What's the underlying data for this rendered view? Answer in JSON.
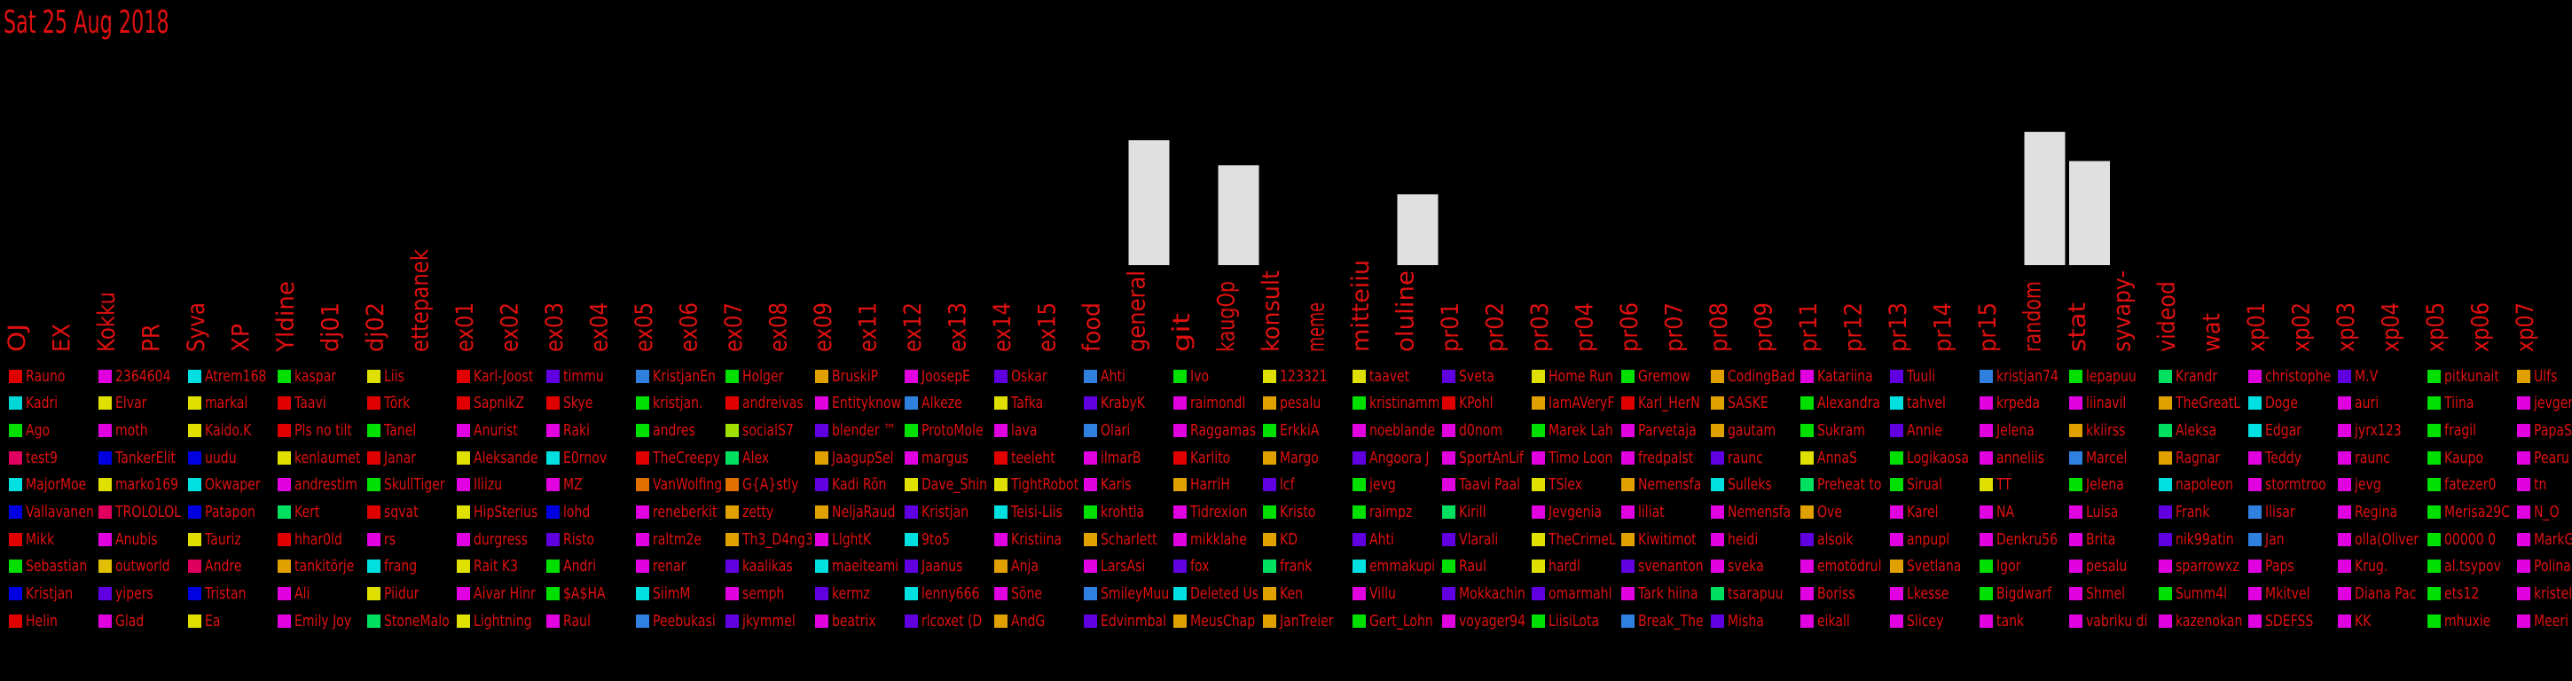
{
  "date": "Sat 25 Aug 2018",
  "chart_data": {
    "type": "bar",
    "categories": [
      "OJ",
      "EX",
      "Kokku",
      "PR",
      "Syva",
      "XP",
      "Yldine",
      "dj01",
      "dj02",
      "ettepanek",
      "ex01",
      "ex02",
      "ex03",
      "ex04",
      "ex05",
      "ex06",
      "ex07",
      "ex08",
      "ex09",
      "ex11",
      "ex12",
      "ex13",
      "ex14",
      "ex15",
      "food",
      "general",
      "git",
      "kaugOp",
      "konsult",
      "meme",
      "mitteiiu",
      "oluline",
      "pr01",
      "pr02",
      "pr03",
      "pr04",
      "pr06",
      "pr07",
      "pr08",
      "pr09",
      "pr11",
      "pr12",
      "pr13",
      "pr14",
      "pr15",
      "random",
      "stat",
      "syvapy-",
      "videod",
      "wat",
      "xp01",
      "xp02",
      "xp03",
      "xp04",
      "xp05",
      "xp06",
      "xp07"
    ],
    "values": [
      0,
      0,
      0,
      0,
      0,
      0,
      0,
      0,
      0,
      0,
      0,
      0,
      0,
      0,
      0,
      0,
      0,
      0,
      0,
      0,
      0,
      0,
      0,
      0,
      0,
      15,
      0,
      12,
      0,
      0,
      0,
      8.5,
      0,
      0,
      0,
      0,
      0,
      0,
      0,
      0,
      0,
      0,
      0,
      0,
      0,
      16,
      12.5,
      0,
      0,
      0,
      0,
      0,
      0,
      0,
      0,
      0,
      0
    ],
    "ylim": [
      0,
      18
    ]
  },
  "columns": [
    {
      "colors": [
        "#e00000",
        "#00d8d8",
        "#00e000",
        "#e00060",
        "#00e0e0",
        "#0000e0",
        "#e00000",
        "#00e000",
        "#0000e0",
        "#e00000"
      ],
      "names": [
        "Rauno",
        "Kadri",
        "Ago",
        "test9",
        "MajorMoe",
        "Vallavanen",
        "Mikk",
        "Sebastian",
        "Kristjan",
        "Helin"
      ]
    },
    {
      "colors": [
        "#e000e0",
        "#e0e000",
        "#e000e0",
        "#0000e0",
        "#e0e000",
        "#e00060",
        "#e000e0",
        "#e0c000",
        "#6000e0",
        "#e000e0"
      ],
      "names": [
        "2364604",
        "Elvar",
        "moth",
        "TankerElit",
        "marko169",
        "TROLOLOL",
        "Anubis",
        "outworld",
        "yipers",
        "Glad"
      ]
    },
    {
      "colors": [
        "#00e0e0",
        "#e0e000",
        "#e0e000",
        "#0000e0",
        "#00e0e0",
        "#0000e0",
        "#e0e000",
        "#e00060",
        "#0000e0",
        "#e0e000"
      ],
      "names": [
        "Atrem168",
        "markal",
        "Kaido.K",
        "uudu",
        "Okwaper",
        "Pataрon",
        "Tauriz",
        "Andre",
        "Tristan",
        "Ea"
      ]
    },
    {
      "colors": [
        "#00e000",
        "#e00000",
        "#e00000",
        "#e0e000",
        "#e000e0",
        "#00e060",
        "#e00000",
        "#e0a000",
        "#e000e0",
        "#e000e0"
      ],
      "names": [
        "kaspar",
        "Taavi",
        "Pls no tilt",
        "kenlaumet",
        "andrestim",
        "Kert",
        "hhar0ld",
        "tankitörje",
        "Ali",
        "Emily Joy"
      ]
    },
    {
      "colors": [
        "#e0e000",
        "#e00000",
        "#00e000",
        "#e00000",
        "#00e000",
        "#e00000",
        "#e000e0",
        "#00e0e0",
        "#e0e000",
        "#00e060"
      ],
      "names": [
        "Liis",
        "Tõrk",
        "Tanel",
        "Janar",
        "SkullTiger",
        "sqvat",
        "rs",
        "frang",
        "Piidur",
        "StoneMalo"
      ]
    },
    {
      "colors": [
        "#e00000",
        "#e00000",
        "#e000e0",
        "#e0e000",
        "#e000e0",
        "#e0e000",
        "#e000e0",
        "#e0e000",
        "#e000e0",
        "#e0e000"
      ],
      "names": [
        "Karl-Joost",
        "SapnikZ",
        "Anurist",
        "Aleksande",
        "Iliizu",
        "HipSterius",
        "durgress",
        "Rait K3",
        "Aivar Hinr",
        "Lightning"
      ]
    },
    {
      "colors": [
        "#6000e0",
        "#e00000",
        "#e000e0",
        "#00e0e0",
        "#e000e0",
        "#0000e0",
        "#6000e0",
        "#00e000",
        "#00e000",
        "#e000e0"
      ],
      "names": [
        "timmu",
        "Skye",
        "Raki",
        "E0rnov",
        "MZ",
        "lohd",
        "Risto",
        "Andri",
        "$A$HA",
        "Raul"
      ]
    },
    {
      "colors": [
        "#3080e0",
        "#00e000",
        "#00e000",
        "#e00000",
        "#e07000",
        "#e000e0",
        "#e000e0",
        "#e000e0",
        "#00e0e0",
        "#3080e0"
      ],
      "names": [
        "KristjanEn",
        "kristjan.",
        "andres",
        "TheCreepy",
        "VanWolfing",
        "reneberkit",
        "raltm2e",
        "renar",
        "SiimM",
        "Peebukasi"
      ]
    },
    {
      "colors": [
        "#00e000",
        "#e00000",
        "#a0e000",
        "#00e060",
        "#e07000",
        "#e0a000",
        "#e0a000",
        "#6000e0",
        "#e000e0",
        "#6000e0"
      ],
      "names": [
        "Holger",
        "andreivas",
        "socialS7",
        "Alex",
        "G{A}stly",
        "zetty",
        "Th3_D4ng3",
        "kaalikas",
        "semph",
        "jkymmel"
      ]
    },
    {
      "colors": [
        "#e0a000",
        "#e000e0",
        "#6000e0",
        "#e0a000",
        "#6000e0",
        "#e0a000",
        "#e000e0",
        "#00e0e0",
        "#6000e0",
        "#e000e0"
      ],
      "names": [
        "BruskiP",
        "Entityknow",
        "blender ™",
        "JaagupSel",
        "Kadi Rõn",
        "NeljaRaud",
        "LlghtK",
        "maeiteami",
        "kermz",
        "beatrix"
      ]
    },
    {
      "colors": [
        "#e000e0",
        "#3080e0",
        "#00e000",
        "#e000e0",
        "#e0e000",
        "#6000e0",
        "#00e0e0",
        "#6000e0",
        "#00e0e0",
        "#6000e0"
      ],
      "names": [
        "JoosepE",
        "Alkeze",
        "ProtoMole",
        "margus",
        "Dave_Shin",
        "Kristjan",
        "9to5",
        "Jaanus",
        "lenny666",
        "rlcoxet (D"
      ]
    },
    {
      "colors": [
        "#6000e0",
        "#e0e000",
        "#e000e0",
        "#e00000",
        "#e0e000",
        "#00e0e0",
        "#e000e0",
        "#e0a000",
        "#e000e0",
        "#e0a000"
      ],
      "names": [
        "Oskar",
        "Tafka",
        "lava",
        "teeleht",
        "TightRobot",
        "Teisi-Liis",
        "Kristiina",
        "Anja",
        "Söne",
        "AndG"
      ]
    },
    {
      "colors": [
        "#3080e0",
        "#6000e0",
        "#3080e0",
        "#e000e0",
        "#e000e0",
        "#00e000",
        "#e0a000",
        "#e000e0",
        "#3080e0",
        "#6000e0"
      ],
      "names": [
        "Ahti",
        "KrabyK",
        "Olari",
        "ilmarB",
        "Karis",
        "krohtla",
        "Scharlett",
        "LarsAsi",
        "SmileyMuu",
        "Edvinmbal"
      ]
    },
    {
      "colors": [
        "#00e000",
        "#e000e0",
        "#e000e0",
        "#e00000",
        "#e0a000",
        "#e000e0",
        "#e000e0",
        "#6000e0",
        "#00e0e0",
        "#e0a000"
      ],
      "names": [
        "Ivo",
        "raimondl",
        "Raggamas",
        "Karlito",
        "HarriH",
        "Tidrexion",
        "mikklahe",
        "fox",
        "Deleted Us",
        "MeusChap"
      ]
    },
    {
      "colors": [
        "#e0e000",
        "#e0a000",
        "#00e000",
        "#e0a000",
        "#6000e0",
        "#00e000",
        "#e0a000",
        "#00e060",
        "#e0a000",
        "#e0a000"
      ],
      "names": [
        "123321",
        "pesalu",
        "ErkkiA",
        "Margo",
        "lcf",
        "Kristo",
        "KD",
        "frank",
        "Ken",
        "JanTreier"
      ]
    },
    {
      "colors": [
        "#e0e000",
        "#00e000",
        "#e000e0",
        "#6000e0",
        "#00e000",
        "#00e000",
        "#6000e0",
        "#00e0e0",
        "#e000e0",
        "#00e000"
      ],
      "names": [
        "taavet",
        "kristinamm",
        "noeblande",
        "Angoora J",
        "jevg",
        "raimpz",
        "Ahti",
        "emmakupi",
        "Villu",
        "Gert_Lohn"
      ]
    },
    {
      "colors": [
        "#6000e0",
        "#e00000",
        "#e000e0",
        "#e000e0",
        "#e000e0",
        "#00e060",
        "#6000e0",
        "#00e000",
        "#6000e0",
        "#e000e0"
      ],
      "names": [
        "Sveta",
        "KPohl",
        "d0nom",
        "SportAnLif",
        "Taavi Paal",
        "Kirill",
        "Vlarali",
        "Raul",
        "Mokkachin",
        "voyager94"
      ]
    },
    {
      "colors": [
        "#e0e000",
        "#e0a000",
        "#00e000",
        "#e000e0",
        "#e0e000",
        "#e000e0",
        "#e0e000",
        "#e0e000",
        "#6000e0",
        "#00e000"
      ],
      "names": [
        "Home Run",
        "IamAVeryF",
        "Marek Lah",
        "Timo Loon",
        "TSlex",
        "Jevgenia",
        "TheCrimeL",
        "hardl",
        "omarmahl",
        "LiisiLota"
      ]
    },
    {
      "colors": [
        "#00e000",
        "#e00000",
        "#e000e0",
        "#e000e0",
        "#e0a000",
        "#e000e0",
        "#e0a000",
        "#6000e0",
        "#e000e0",
        "#3080e0"
      ],
      "names": [
        "Gremow",
        "Karl_HerN",
        "Parvetaja",
        "fredpalst",
        "Nemensfa",
        "liliat",
        "Kiwitimot",
        "svenanton",
        "Tark hiina",
        "Break_The"
      ]
    },
    {
      "colors": [
        "#e0a000",
        "#e0a000",
        "#e0a000",
        "#6000e0",
        "#00e0e0",
        "#e000e0",
        "#e000e0",
        "#e000e0",
        "#00e060",
        "#6000e0"
      ],
      "names": [
        "CodingBad",
        "SASKE",
        "gautam",
        "raunc",
        "Sulleks",
        "Nemensfa",
        "heidi",
        "sveka",
        "tsarapuu",
        "Misha"
      ]
    },
    {
      "colors": [
        "#e000e0",
        "#00e000",
        "#00e000",
        "#e0e000",
        "#00e060",
        "#e0a000",
        "#6000e0",
        "#e000e0",
        "#e000e0",
        "#e000e0"
      ],
      "names": [
        "Katariina",
        "Alexandra",
        "Sukram",
        "AnnaS",
        "Preheat to",
        "Ove",
        "alsoik",
        "emotödrul",
        "Boriss",
        "eikall"
      ]
    },
    {
      "colors": [
        "#6000e0",
        "#00e0e0",
        "#6000e0",
        "#00e000",
        "#00e000",
        "#e000e0",
        "#e000e0",
        "#e0a000",
        "#e000e0",
        "#e000e0"
      ],
      "names": [
        "Tuuli",
        "tahvel",
        "Annie",
        "Logikaosa",
        "Sirual",
        "Karel",
        "anpupl",
        "Svetlana",
        "Lkesse",
        "Slicey"
      ]
    },
    {
      "colors": [
        "#3080e0",
        "#e000e0",
        "#e000e0",
        "#e000e0",
        "#e0e000",
        "#e000e0",
        "#e000e0",
        "#00e000",
        "#00e000",
        "#e000e0"
      ],
      "names": [
        "kristjan74",
        "krpeda",
        "Jelena",
        "anneliis",
        "TT",
        "NA",
        "Denkru56",
        "Igor",
        "Bigdwarf",
        "tank"
      ]
    },
    {
      "colors": [
        "#00e000",
        "#e000e0",
        "#e0a000",
        "#3080e0",
        "#00e000",
        "#e000e0",
        "#e000e0",
        "#e000e0",
        "#e000e0",
        "#e000e0"
      ],
      "names": [
        "lepapuu",
        "liinavil",
        "kkiirss",
        "Marcel",
        "Jelena",
        "Luisa",
        "Brita",
        "pesalu",
        "Shmel",
        "vabriku di"
      ]
    },
    {
      "colors": [
        "#00e060",
        "#e0a000",
        "#00e060",
        "#e0a000",
        "#00e0e0",
        "#6000e0",
        "#6000e0",
        "#e000e0",
        "#00e000",
        "#e000e0"
      ],
      "names": [
        "Krandr",
        "TheGreatL",
        "Aleksa",
        "Ragnar",
        "napoleon",
        "Frank",
        "nik99atin",
        "sparrowxz",
        "Summ4l",
        "kazenokan"
      ]
    },
    {
      "colors": [
        "#e000e0",
        "#00e0e0",
        "#00e0e0",
        "#e000e0",
        "#e000e0",
        "#3080e0",
        "#3080e0",
        "#e000e0",
        "#e000e0",
        "#e000e0"
      ],
      "names": [
        "christophe",
        "Doge",
        "Edgar",
        "Teddy",
        "stormtroo",
        "Ilisar",
        "Jan",
        "Paps",
        "Mkitvel",
        "SDEFSS"
      ]
    },
    {
      "colors": [
        "#6000e0",
        "#e000e0",
        "#e000e0",
        "#e000e0",
        "#e000e0",
        "#e000e0",
        "#e000e0",
        "#e000e0",
        "#e000e0",
        "#e000e0"
      ],
      "names": [
        "M.V",
        "auri",
        "jyrx123",
        "raunc",
        "jevg",
        "Regina",
        "olla(Oliver",
        "Krug.",
        "Diana Pac",
        "KK"
      ]
    },
    {
      "colors": [
        "#00e000",
        "#00e000",
        "#00e000",
        "#00e000",
        "#00e000",
        "#00e000",
        "#00e000",
        "#00e000",
        "#00e000",
        "#00e000"
      ],
      "names": [
        "pitkunait",
        "Tiina",
        "fragil",
        "Kaupo",
        "fatezer0",
        "Merisa29C",
        "00000 0",
        "al.tsypov",
        "ets12",
        "mhuxie"
      ]
    },
    {
      "colors": [
        "#e0a000",
        "#e000e0",
        "#e000e0",
        "#e000e0",
        "#e000e0",
        "#e000e0",
        "#e000e0",
        "#e000e0",
        "#e000e0",
        "#e000e0"
      ],
      "names": [
        "Ulfs",
        "jevgen",
        "PapaSay",
        "Pearu Pe",
        "tn",
        "N_O",
        "MarkG",
        "Polina",
        "kristel",
        "Meeri"
      ]
    }
  ]
}
